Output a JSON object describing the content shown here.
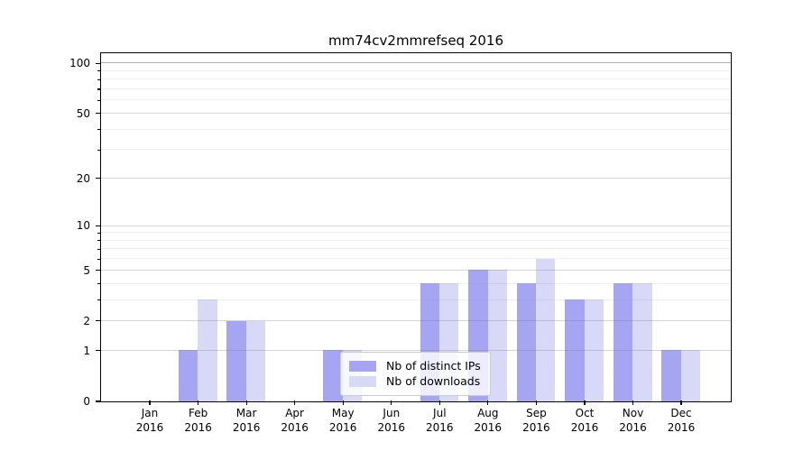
{
  "title": "mm74cv2mmrefseq 2016",
  "colors": {
    "ips": "#a5a5f2",
    "downloads": "#d8d8f7",
    "axis": "#000000",
    "legend_border": "#cccccc"
  },
  "legend": {
    "items": [
      {
        "key": "ips",
        "label": "Nb of distinct IPs"
      },
      {
        "key": "downloads",
        "label": "Nb of downloads"
      }
    ]
  },
  "chart_data": {
    "type": "bar",
    "title": "mm74cv2mmrefseq 2016",
    "categories": [
      "Jan 2016",
      "Feb 2016",
      "Mar 2016",
      "Apr 2016",
      "May 2016",
      "Jun 2016",
      "Jul 2016",
      "Aug 2016",
      "Sep 2016",
      "Oct 2016",
      "Nov 2016",
      "Dec 2016"
    ],
    "series": [
      {
        "name": "Nb of distinct IPs",
        "color_key": "ips",
        "values": [
          0,
          1,
          2,
          0,
          1,
          0,
          4,
          5,
          4,
          3,
          4,
          1
        ]
      },
      {
        "name": "Nb of downloads",
        "color_key": "downloads",
        "values": [
          0,
          3,
          2,
          0,
          1,
          0,
          4,
          5,
          6,
          3,
          4,
          1
        ]
      }
    ],
    "xlabel": "",
    "ylabel": "",
    "yscale": "log1p",
    "ylim": [
      0,
      115
    ],
    "y_ticks": [
      0,
      1,
      2,
      5,
      10,
      20,
      50,
      100
    ],
    "y_minor_ticks": [
      3,
      4,
      6,
      7,
      8,
      9,
      30,
      40,
      60,
      70,
      80,
      90
    ],
    "grid": "on",
    "legend_position": "lower-center-inside"
  }
}
